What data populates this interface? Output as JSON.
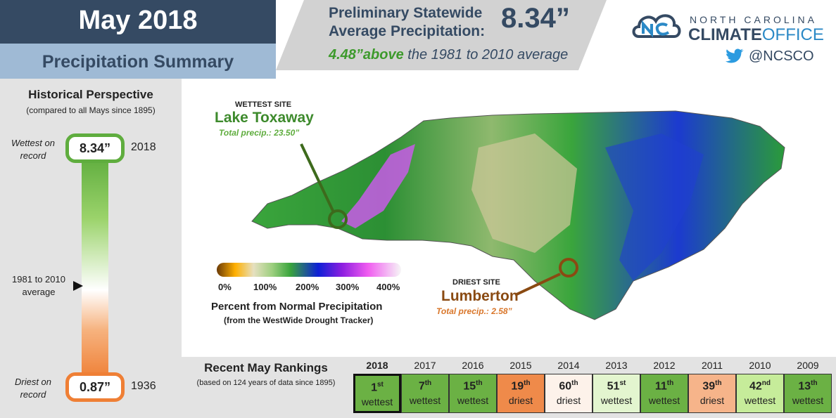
{
  "header": {
    "title": "May 2018",
    "subtitle": "Precipitation Summary",
    "prelim_line1": "Preliminary Statewide",
    "prelim_line2": "Average Precipitation:",
    "statewide_value": "8.34”",
    "departure_value": "4.48”above",
    "departure_text": " the 1981 to 2010 average"
  },
  "logo": {
    "top_text": "NORTH CAROLINA",
    "climate": "CLIMATE",
    "office": "OFFICE",
    "twitter_handle": "@NCSCO"
  },
  "historical": {
    "title": "Historical Perspective",
    "subtitle": "(compared to all Mays since 1895)",
    "wettest_label_1": "Wettest on",
    "wettest_label_2": "record",
    "wettest_value": "8.34”",
    "wettest_year": "2018",
    "avg_label_1": "1981 to 2010",
    "avg_label_2": "average",
    "driest_label_1": "Driest on",
    "driest_label_2": "record",
    "driest_value": "0.87”",
    "driest_year": "1936"
  },
  "map": {
    "wettest_tag": "WETTEST SITE",
    "wettest_name": "Lake Toxaway",
    "wettest_total": "Total precip.: 23.50”",
    "driest_tag": "DRIEST SITE",
    "driest_name": "Lumberton",
    "driest_total": "Total precip.: 2.58”"
  },
  "legend": {
    "ticks": [
      "0%",
      "100%",
      "200%",
      "300%",
      "400%"
    ],
    "title": "Percent from Normal Precipitation",
    "subtitle": "(from the WestWide Drought Tracker)"
  },
  "rankings": {
    "title": "Recent May Rankings",
    "subtitle": "(based on 124 years of data since 1895)",
    "years": [
      {
        "year": "2018",
        "rank": "1",
        "suffix": "st",
        "type": "wettest",
        "color": "#6bb144"
      },
      {
        "year": "2017",
        "rank": "7",
        "suffix": "th",
        "type": "wettest",
        "color": "#6bb144"
      },
      {
        "year": "2016",
        "rank": "15",
        "suffix": "th",
        "type": "wettest",
        "color": "#6bb144"
      },
      {
        "year": "2015",
        "rank": "19",
        "suffix": "th",
        "type": "driest",
        "color": "#ef8a4a"
      },
      {
        "year": "2014",
        "rank": "60",
        "suffix": "th",
        "type": "driest",
        "color": "#fdf2ea"
      },
      {
        "year": "2013",
        "rank": "51",
        "suffix": "st",
        "type": "wettest",
        "color": "#e3f5cf"
      },
      {
        "year": "2012",
        "rank": "11",
        "suffix": "th",
        "type": "wettest",
        "color": "#6bb144"
      },
      {
        "year": "2011",
        "rank": "39",
        "suffix": "th",
        "type": "driest",
        "color": "#f6b48a"
      },
      {
        "year": "2010",
        "rank": "42",
        "suffix": "nd",
        "type": "wettest",
        "color": "#c6ec9a"
      },
      {
        "year": "2009",
        "rank": "13",
        "suffix": "th",
        "type": "wettest",
        "color": "#6bb144"
      }
    ]
  }
}
